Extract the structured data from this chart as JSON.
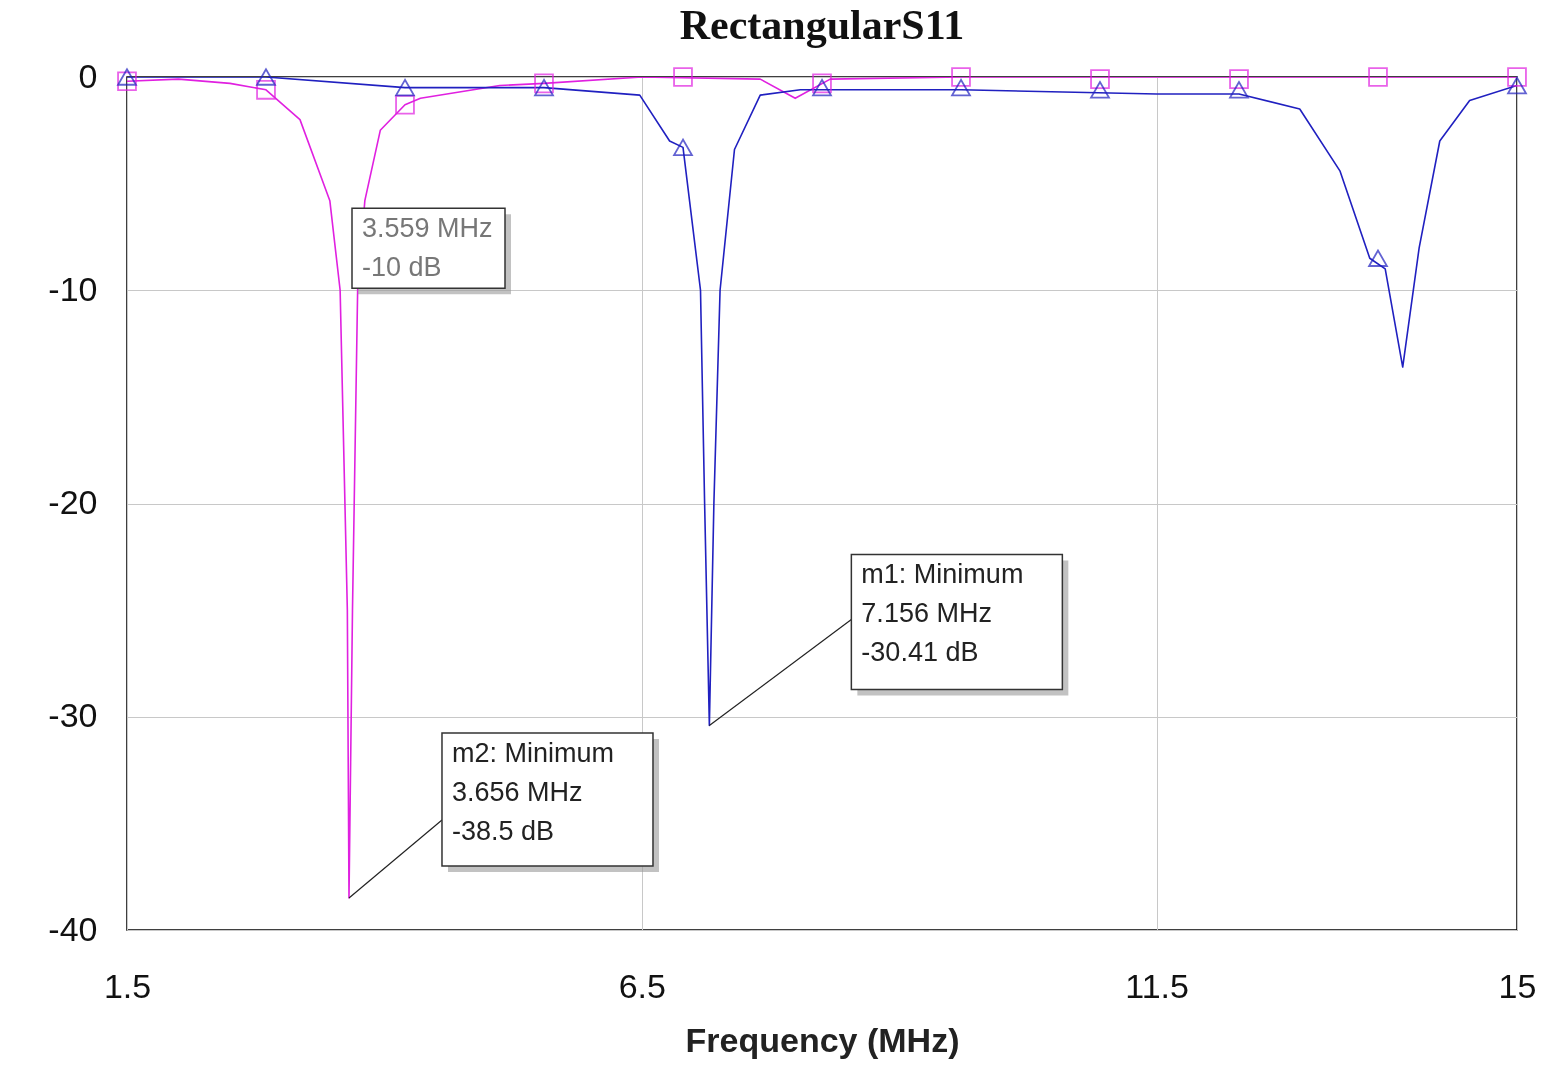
{
  "chart_data": {
    "type": "line",
    "title": "RectangularS11",
    "xlabel": "Frequency (MHz)",
    "xlim": [
      1.5,
      15
    ],
    "xticks": [
      1.5,
      6.5,
      11.5,
      15
    ],
    "ylim": [
      -40,
      0
    ],
    "yticks": [
      0,
      -10,
      -20,
      -30,
      -40
    ],
    "grid": true,
    "series": [
      {
        "type": "line",
        "color": "#e020e0",
        "marker": "none",
        "x": [
          1.5,
          2.0,
          2.5,
          2.85,
          3.18,
          3.47,
          3.57,
          3.64,
          3.656,
          3.69,
          3.74,
          3.81,
          3.96,
          4.2,
          4.35,
          5.12,
          5.55,
          6.5,
          7.65,
          7.99,
          8.33,
          9.6,
          11.5,
          13.65,
          15
        ],
        "values": [
          -0.2,
          -0.1,
          -0.3,
          -0.6,
          -2,
          -5.8,
          -10,
          -25,
          -38.5,
          -25,
          -10,
          -5.8,
          -2.5,
          -1.3,
          -1,
          -0.4,
          -0.3,
          0,
          -0.1,
          -1,
          -0.1,
          0,
          0,
          0,
          0
        ]
      },
      {
        "type": "line",
        "color": "#2020c0",
        "marker": "none",
        "x": [
          1.5,
          2.85,
          4.2,
          5.55,
          6.48,
          6.77,
          6.9,
          7.07,
          7.11,
          7.156,
          7.2,
          7.26,
          7.4,
          7.65,
          8.04,
          9.6,
          11.5,
          12.3,
          12.89,
          13.28,
          13.57,
          13.72,
          13.89,
          14.05,
          14.25,
          14.54,
          15
        ],
        "values": [
          0,
          0,
          -0.5,
          -0.5,
          -0.85,
          -3,
          -3.3,
          -10,
          -20,
          -30.41,
          -20,
          -10,
          -3.4,
          -0.85,
          -0.6,
          -0.6,
          -0.8,
          -0.8,
          -1.5,
          -4.4,
          -8.5,
          -9,
          -13.6,
          -8,
          -3,
          -1.1,
          -0.4
        ]
      },
      {
        "type": "scatter",
        "color": "#e020e0",
        "marker": "square",
        "x": [
          1.5,
          2.85,
          4.2,
          5.55,
          6.9,
          8.25,
          9.6,
          10.95,
          12.3,
          13.65,
          15
        ],
        "values": [
          -0.2,
          -0.6,
          -1.3,
          -0.3,
          0,
          -0.3,
          0,
          -0.1,
          -0.1,
          0,
          0
        ]
      },
      {
        "type": "scatter",
        "color": "#2020c0",
        "marker": "triangle",
        "x": [
          1.5,
          2.85,
          4.2,
          5.55,
          6.9,
          8.25,
          9.6,
          10.95,
          12.3,
          13.65,
          15
        ],
        "values": [
          0,
          0,
          -0.5,
          -0.5,
          -3.3,
          -0.5,
          -0.5,
          -0.6,
          -0.6,
          -8.5,
          -0.4
        ]
      }
    ],
    "annotations": [
      {
        "text": "3.559 MHz\n-10 dB",
        "x": 3.559,
        "y": -10
      },
      {
        "text": "m1: Minimum\n7.156 MHz\n-30.41 dB",
        "x": 7.156,
        "y": -30.41
      },
      {
        "text": "m2: Minimum\n3.656 MHz\n-38.5 dB",
        "x": 3.656,
        "y": -38.5
      }
    ]
  }
}
